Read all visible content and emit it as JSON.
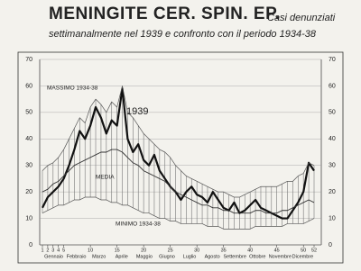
{
  "chart_data": {
    "type": "line",
    "title": "MENINGITE CER. SPIN. EP.",
    "subtitle": [
      "Casi denunziati",
      "settimanalmente nel 1939 e confronto con il periodo 1934-38"
    ],
    "x": [
      1,
      2,
      3,
      4,
      5,
      6,
      7,
      8,
      9,
      10,
      11,
      12,
      13,
      14,
      15,
      16,
      17,
      18,
      19,
      20,
      21,
      22,
      23,
      24,
      25,
      26,
      27,
      28,
      29,
      30,
      31,
      32,
      33,
      34,
      35,
      36,
      37,
      38,
      39,
      40,
      41,
      42,
      43,
      44,
      45,
      46,
      47,
      48,
      49,
      50,
      51,
      52
    ],
    "xlim": [
      1,
      52
    ],
    "xticks": [
      1,
      2,
      3,
      4,
      5,
      10,
      15,
      20,
      25,
      30,
      35,
      40,
      45,
      50,
      52
    ],
    "months": [
      "Gennaio",
      "Febbraio",
      "Marzo",
      "Aprile",
      "Maggio",
      "Giugno",
      "Luglio",
      "Agosto",
      "Settembre",
      "Ottobre",
      "Novembre",
      "Dicembre"
    ],
    "ylim": [
      0,
      70
    ],
    "yticks": [
      0,
      10,
      20,
      30,
      40,
      50,
      60,
      70
    ],
    "annotations": [
      "MASSIMO 1934-38",
      "1939",
      "MEDIA",
      "MINIMO 1934-38"
    ],
    "series": [
      {
        "name": "1939",
        "color": "#111111",
        "values": [
          14,
          18,
          20,
          22,
          25,
          30,
          36,
          43,
          40,
          45,
          52,
          48,
          42,
          47,
          45,
          59,
          40,
          35,
          38,
          32,
          30,
          34,
          28,
          25,
          22,
          20,
          17,
          20,
          22,
          19,
          18,
          16,
          20,
          17,
          14,
          13,
          16,
          12,
          13,
          15,
          17,
          14,
          13,
          12,
          11,
          10,
          10,
          13,
          16,
          20,
          31,
          28
        ]
      },
      {
        "name": "MEDIA",
        "color": "#333333",
        "values": [
          20,
          21,
          23,
          24,
          26,
          28,
          30,
          31,
          32,
          33,
          34,
          35,
          35,
          36,
          36,
          35,
          33,
          31,
          30,
          28,
          27,
          26,
          25,
          24,
          22,
          20,
          19,
          18,
          17,
          16,
          15,
          15,
          14,
          14,
          13,
          13,
          12,
          12,
          12,
          12,
          13,
          13,
          12,
          12,
          12,
          13,
          13,
          14,
          15,
          16,
          17,
          16
        ]
      },
      {
        "name": "MASSIMO 1934-38",
        "color": "#555555",
        "values": [
          28,
          30,
          31,
          33,
          36,
          40,
          44,
          48,
          46,
          52,
          55,
          53,
          50,
          54,
          52,
          60,
          50,
          48,
          45,
          42,
          40,
          38,
          36,
          35,
          33,
          30,
          28,
          26,
          25,
          24,
          23,
          22,
          21,
          20,
          20,
          19,
          18,
          18,
          19,
          20,
          21,
          22,
          22,
          22,
          22,
          23,
          24,
          24,
          26,
          27,
          31,
          30
        ]
      },
      {
        "name": "MINIMO 1934-38",
        "color": "#555555",
        "values": [
          12,
          13,
          14,
          15,
          15,
          16,
          17,
          17,
          18,
          18,
          18,
          17,
          17,
          16,
          16,
          15,
          15,
          14,
          13,
          12,
          12,
          11,
          10,
          10,
          9,
          9,
          8,
          8,
          8,
          8,
          8,
          7,
          7,
          7,
          6,
          6,
          6,
          6,
          6,
          6,
          7,
          7,
          7,
          7,
          7,
          7,
          8,
          8,
          8,
          8,
          9,
          10
        ]
      }
    ]
  }
}
